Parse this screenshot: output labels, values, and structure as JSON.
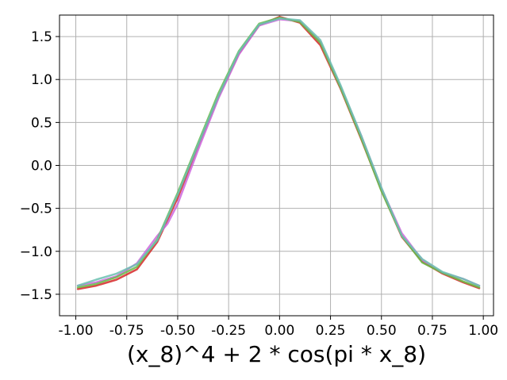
{
  "chart_data": {
    "type": "line",
    "title": "",
    "xlabel": "(x_8)^4 + 2 * cos(pi * x_8)",
    "ylabel": "",
    "xlim": [
      -1.08,
      1.05
    ],
    "ylim": [
      -1.75,
      1.75
    ],
    "grid": true,
    "legend": "none",
    "x_ticks": [
      "-1.00",
      "-0.75",
      "-0.50",
      "-0.25",
      "0.00",
      "0.25",
      "0.50",
      "0.75",
      "1.00"
    ],
    "x_tick_values": [
      -1.0,
      -0.75,
      -0.5,
      -0.25,
      0.0,
      0.25,
      0.5,
      0.75,
      1.0
    ],
    "y_ticks": [
      "1.5",
      "1.0",
      "0.5",
      "0.0",
      "−0.5",
      "−1.0",
      "−1.5"
    ],
    "y_tick_values": [
      1.5,
      1.0,
      0.5,
      0.0,
      -0.5,
      -1.0,
      -1.5
    ],
    "series": [
      {
        "color": "#d62728",
        "x": [
          -0.99,
          -0.9,
          -0.8,
          -0.7,
          -0.6,
          -0.5,
          -0.4,
          -0.3,
          -0.2,
          -0.1,
          0.0,
          0.1,
          0.2,
          0.3,
          0.4,
          0.5,
          0.6,
          0.7,
          0.8,
          0.9,
          0.98
        ],
        "y": [
          -1.44,
          -1.4,
          -1.33,
          -1.21,
          -0.89,
          -0.38,
          0.22,
          0.8,
          1.3,
          1.63,
          1.73,
          1.66,
          1.4,
          0.89,
          0.31,
          -0.29,
          -0.83,
          -1.12,
          -1.26,
          -1.36,
          -1.43
        ]
      },
      {
        "color": "#cc66dd",
        "x": [
          -0.99,
          -0.9,
          -0.8,
          -0.7,
          -0.6,
          -0.55,
          -0.5,
          -0.4,
          -0.3,
          -0.2,
          -0.1,
          0.0,
          0.1,
          0.2,
          0.3,
          0.4,
          0.5,
          0.6,
          0.7,
          0.8,
          0.9,
          0.98
        ],
        "y": [
          -1.4,
          -1.36,
          -1.29,
          -1.14,
          -0.82,
          -0.68,
          -0.45,
          0.18,
          0.78,
          1.29,
          1.63,
          1.7,
          1.68,
          1.44,
          0.91,
          0.35,
          -0.27,
          -0.79,
          -1.1,
          -1.25,
          -1.32,
          -1.4
        ]
      },
      {
        "color": "#66bb44",
        "x": [
          -0.99,
          -0.9,
          -0.8,
          -0.7,
          -0.6,
          -0.5,
          -0.4,
          -0.3,
          -0.2,
          -0.1,
          0.0,
          0.1,
          0.2,
          0.3,
          0.4,
          0.5,
          0.6,
          0.7,
          0.8,
          0.9,
          0.98
        ],
        "y": [
          -1.42,
          -1.38,
          -1.3,
          -1.18,
          -0.86,
          -0.32,
          0.26,
          0.84,
          1.33,
          1.65,
          1.72,
          1.67,
          1.43,
          0.9,
          0.32,
          -0.3,
          -0.82,
          -1.13,
          -1.25,
          -1.35,
          -1.42
        ]
      },
      {
        "color": "#6bbfb0",
        "x": [
          -0.99,
          -0.9,
          -0.8,
          -0.7,
          -0.6,
          -0.5,
          -0.4,
          -0.3,
          -0.2,
          -0.1,
          0.0,
          0.1,
          0.2,
          0.3,
          0.4,
          0.5,
          0.6,
          0.7,
          0.8,
          0.9,
          0.98
        ],
        "y": [
          -1.4,
          -1.33,
          -1.26,
          -1.15,
          -0.87,
          -0.34,
          0.24,
          0.81,
          1.32,
          1.64,
          1.71,
          1.69,
          1.46,
          0.93,
          0.35,
          -0.26,
          -0.82,
          -1.09,
          -1.24,
          -1.32,
          -1.4
        ]
      }
    ]
  }
}
